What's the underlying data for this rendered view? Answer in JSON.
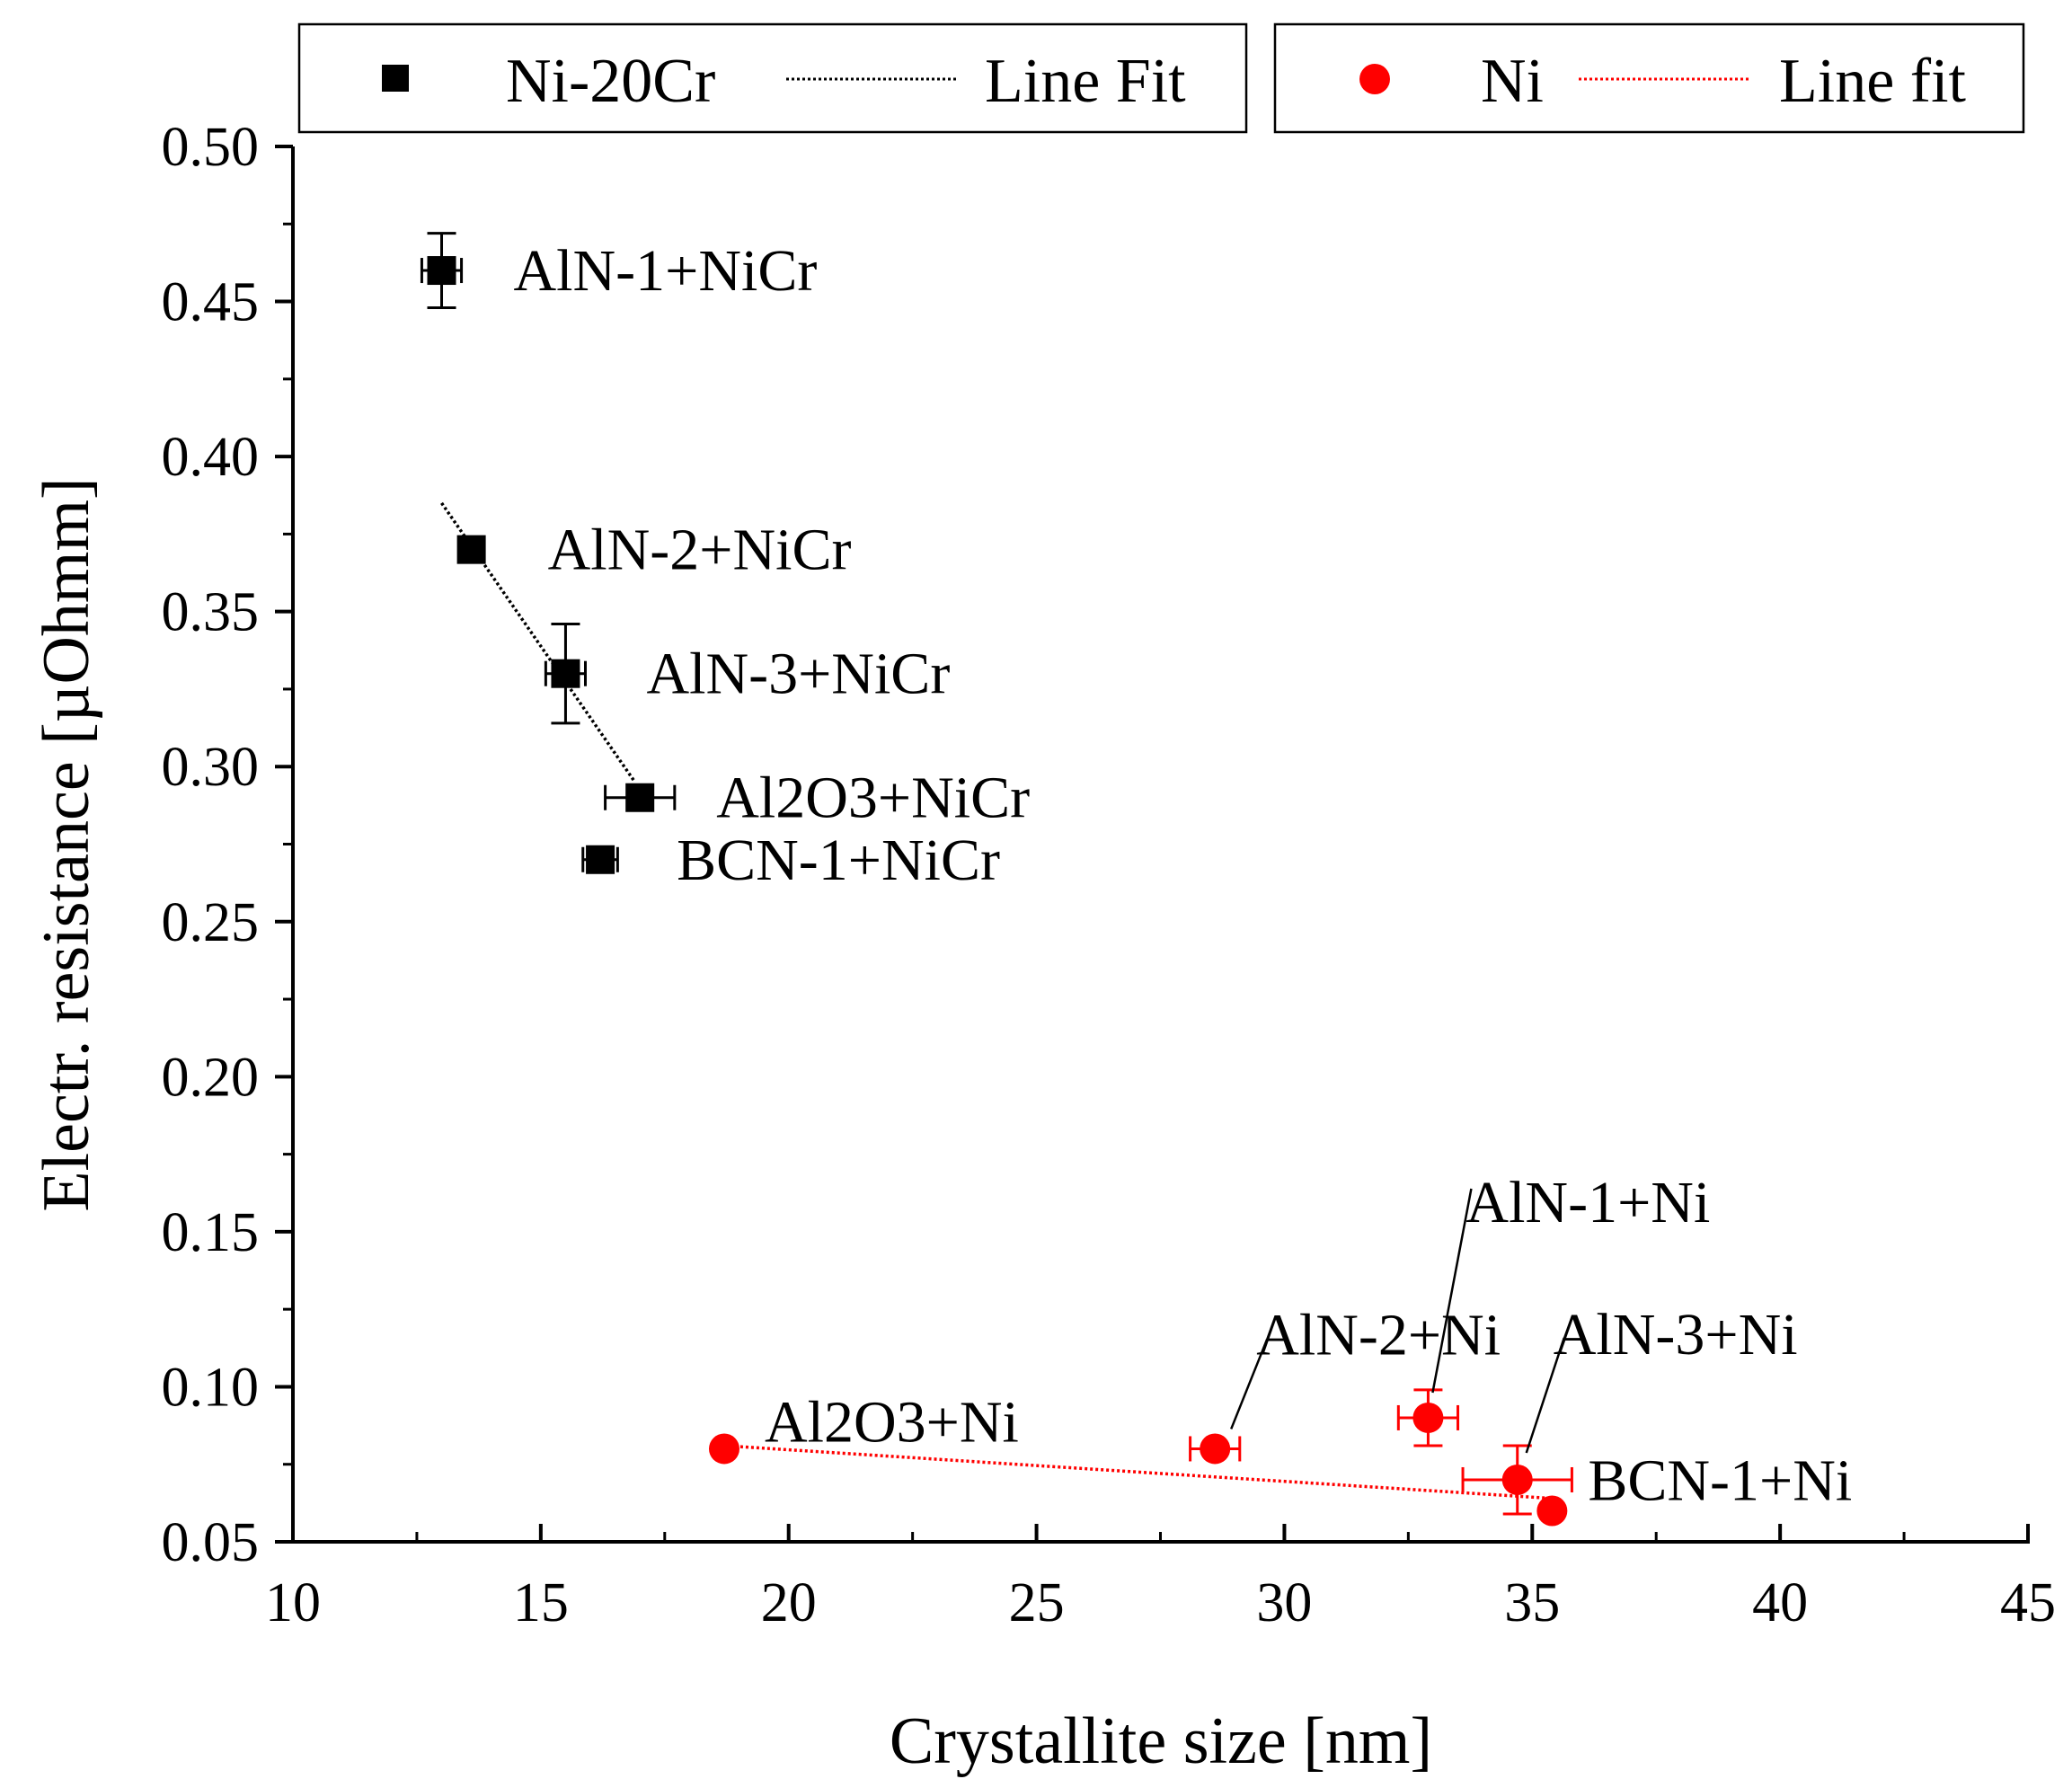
{
  "chart_data": {
    "type": "scatter",
    "xlabel": "Crystallite size [nm]",
    "ylabel": "Electr. resistance [µOhmm]",
    "xlim": [
      10,
      45
    ],
    "ylim": [
      0.05,
      0.5
    ],
    "x_ticks": [
      "10",
      "15",
      "20",
      "25",
      "30",
      "35",
      "40",
      "45"
    ],
    "y_ticks": [
      "0.05",
      "0.10",
      "0.15",
      "0.20",
      "0.25",
      "0.30",
      "0.35",
      "0.40",
      "0.45",
      "0.50"
    ],
    "legend": [
      {
        "name": "Ni-20Cr",
        "fit_label": "Line Fit",
        "color": "#000000",
        "marker": "square"
      },
      {
        "name": "Ni",
        "fit_label": "Line fit",
        "color": "#ff0000",
        "marker": "circle"
      }
    ],
    "series": [
      {
        "name": "Ni-20Cr",
        "color": "#000000",
        "marker": "square",
        "points": [
          {
            "label": "AlN-1+NiCr",
            "x": 13.0,
            "y": 0.46,
            "xerr": 0.4,
            "yerr": 0.012
          },
          {
            "label": "AlN-2+NiCr",
            "x": 13.6,
            "y": 0.37,
            "xerr": 0.0,
            "yerr": 0.0
          },
          {
            "label": "AlN-3+NiCr",
            "x": 15.5,
            "y": 0.33,
            "xerr": 0.4,
            "yerr": 0.016
          },
          {
            "label": "Al2O3+NiCr",
            "x": 17.0,
            "y": 0.29,
            "xerr": 0.7,
            "yerr": 0.0
          },
          {
            "label": "BCN-1+NiCr",
            "x": 16.2,
            "y": 0.27,
            "xerr": 0.35,
            "yerr": 0.0
          }
        ],
        "fit": {
          "x": [
            13.0,
            16.9
          ],
          "y": [
            0.385,
            0.295
          ]
        }
      },
      {
        "name": "Ni",
        "color": "#ff0000",
        "marker": "circle",
        "points": [
          {
            "label": "Al2O3+Ni",
            "x": 18.7,
            "y": 0.08,
            "xerr": 0.0,
            "yerr": 0.0
          },
          {
            "label": "AlN-2+Ni",
            "x": 28.6,
            "y": 0.08,
            "xerr": 0.5,
            "yerr": 0.0
          },
          {
            "label": "AlN-1+Ni",
            "x": 32.9,
            "y": 0.09,
            "xerr": 0.6,
            "yerr": 0.009
          },
          {
            "label": "AlN-3+Ni",
            "x": 34.7,
            "y": 0.07,
            "xerr": 1.1,
            "yerr": 0.011
          },
          {
            "label": "BCN-1+Ni",
            "x": 35.4,
            "y": 0.06,
            "xerr": 0.0,
            "yerr": 0.0
          }
        ],
        "fit": {
          "x": [
            18.7,
            35.4
          ],
          "y": [
            0.081,
            0.064
          ]
        }
      }
    ]
  }
}
